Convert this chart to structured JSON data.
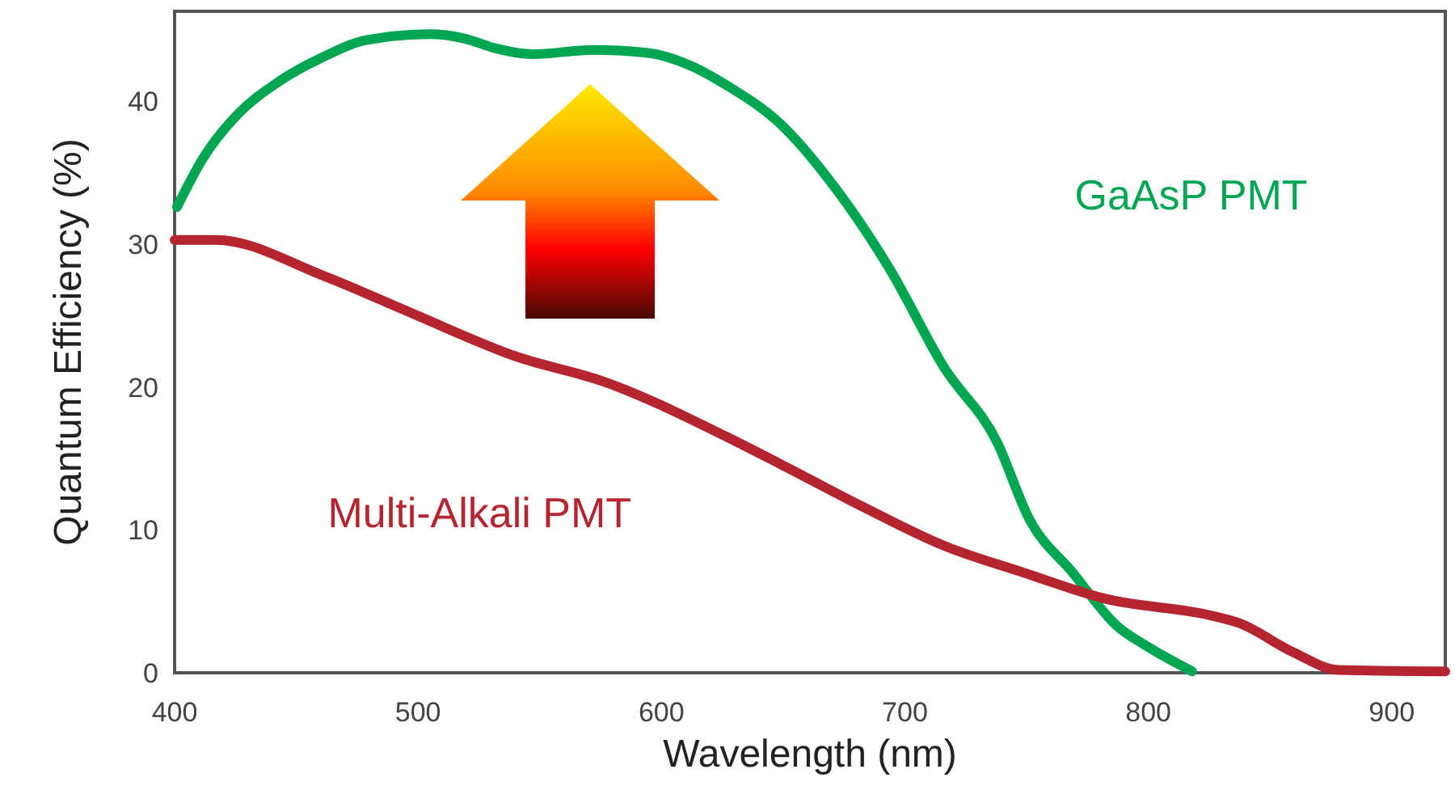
{
  "chart_data": {
    "type": "line",
    "xlabel": "Wavelength (nm)",
    "ylabel": "Quantum Efficiency (%)",
    "xlim": [
      400,
      922
    ],
    "xticks": [
      400,
      500,
      600,
      700,
      800,
      900
    ],
    "ylim": [
      0,
      46.3
    ],
    "yticks": [
      0,
      10,
      20,
      30,
      40
    ],
    "grid": false,
    "line_style": "solid",
    "marker": "none",
    "series": [
      {
        "name": "GaAsP PMT",
        "color": "#00a651",
        "x": [
          401,
          412,
          426,
          443,
          461,
          479,
          505,
          519,
          532,
          547,
          572,
          594,
          612,
          627,
          649,
          672,
          694,
          716,
          738,
          751,
          769,
          787,
          800,
          818
        ],
        "values": [
          32.6,
          36.1,
          39.1,
          41.4,
          43.1,
          44.3,
          44.7,
          44.4,
          43.7,
          43.3,
          43.6,
          43.4,
          42.5,
          41.1,
          38.4,
          33.8,
          28.2,
          21.4,
          16.1,
          10.8,
          7.0,
          3.3,
          1.8,
          0.1
        ]
      },
      {
        "name": "Multi-Alkali PMT",
        "color": "#b5252f",
        "x": [
          400,
          417,
          461,
          497,
          541,
          576,
          627,
          649,
          683,
          716,
          749,
          782,
          826,
          837,
          860,
          878,
          922
        ],
        "values": [
          30.3,
          30.3,
          27.8,
          25.2,
          22.1,
          20.4,
          16.5,
          14.6,
          11.6,
          8.9,
          7.0,
          5.2,
          4.0,
          3.5,
          1.4,
          0.2,
          0.1
        ]
      }
    ]
  }
}
